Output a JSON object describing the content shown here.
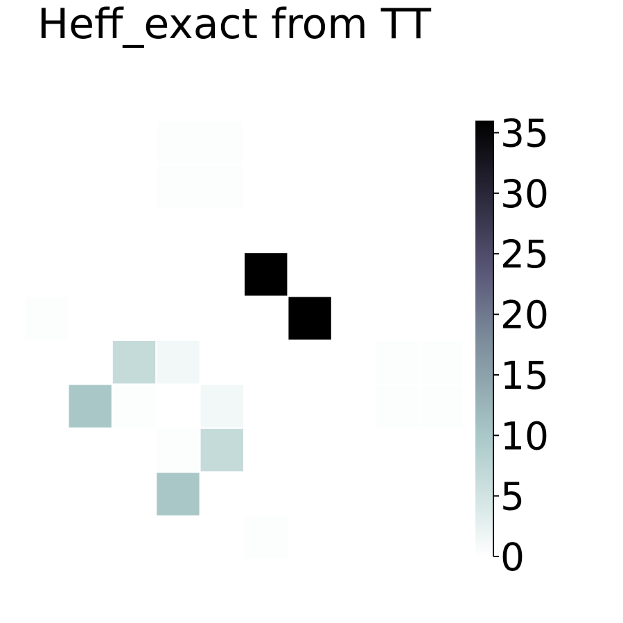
{
  "chart_data": {
    "type": "heatmap",
    "title": "Heff_exact from TT",
    "rows": 10,
    "cols": 10,
    "values": [
      [
        0,
        0,
        0,
        0.3,
        0.3,
        0,
        0,
        0,
        0,
        0
      ],
      [
        0,
        0,
        0,
        0.3,
        0.3,
        0,
        0,
        0,
        0,
        0
      ],
      [
        0,
        0,
        0,
        0,
        0,
        0,
        0,
        0,
        0,
        0
      ],
      [
        0,
        0,
        0,
        0,
        0,
        36,
        0,
        0,
        0,
        0
      ],
      [
        0.3,
        0,
        0,
        0,
        0,
        0,
        36,
        0,
        0,
        0
      ],
      [
        0,
        0,
        6.5,
        1.3,
        0,
        0,
        0,
        0,
        0.3,
        0.3
      ],
      [
        0,
        10,
        0.3,
        0,
        1.3,
        0,
        0,
        0,
        0.3,
        0.3
      ],
      [
        0,
        0,
        0,
        0.3,
        6.5,
        0,
        0,
        0,
        0,
        0
      ],
      [
        0,
        0,
        0,
        10,
        0,
        0,
        0,
        0,
        0,
        0
      ],
      [
        0,
        0,
        0,
        0,
        0,
        0.3,
        0,
        0,
        0,
        0
      ]
    ],
    "colorbar": {
      "range": [
        0,
        36
      ],
      "ticks": [
        0,
        5,
        10,
        15,
        20,
        25,
        30,
        35
      ],
      "tick_labels": [
        "0",
        "5",
        "10",
        "15",
        "20",
        "25",
        "30",
        "35"
      ],
      "colormap": "bone_r"
    }
  }
}
